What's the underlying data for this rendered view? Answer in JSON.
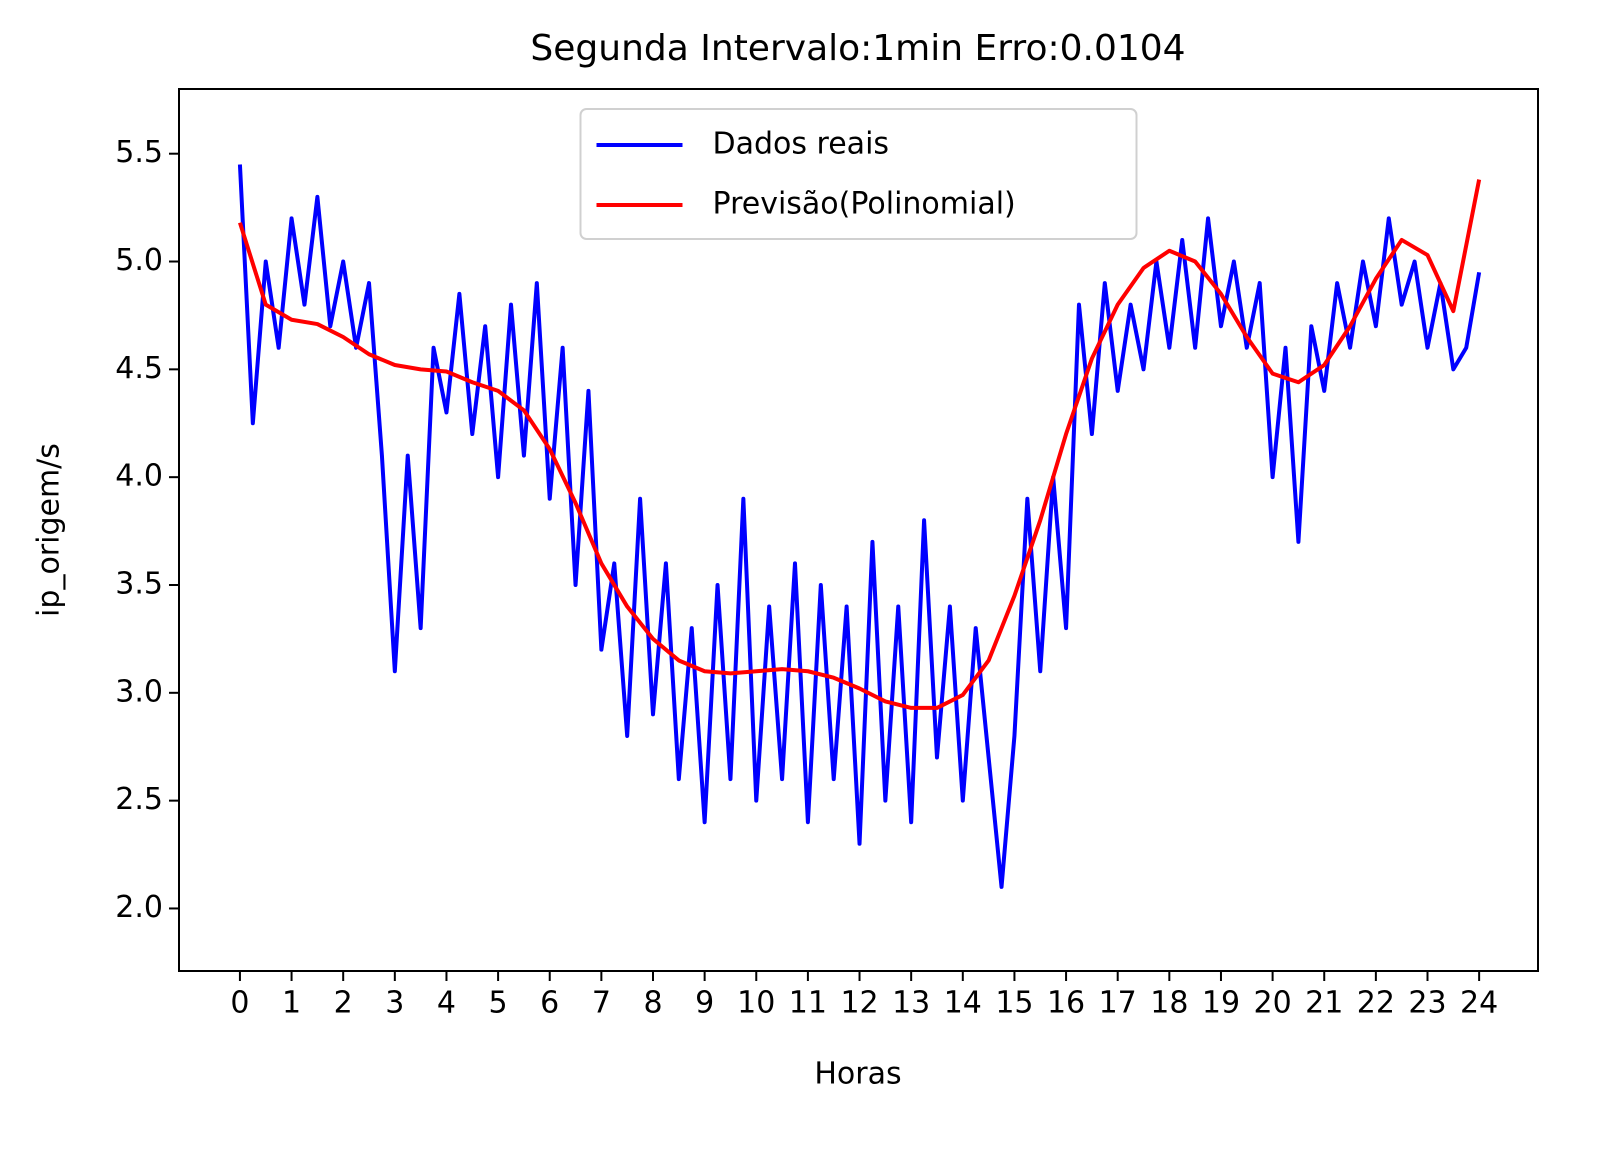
{
  "chart_data": {
    "type": "line",
    "title": "Segunda Intervalo:1min Erro:0.0104",
    "xlabel": "Horas",
    "ylabel": "ip_origem/s",
    "xlim": [
      -1.18,
      25.14
    ],
    "ylim": [
      1.71,
      5.8
    ],
    "xticks": [
      0,
      1,
      2,
      3,
      4,
      5,
      6,
      7,
      8,
      9,
      10,
      11,
      12,
      13,
      14,
      15,
      16,
      17,
      18,
      19,
      20,
      21,
      22,
      23,
      24
    ],
    "yticks": [
      {
        "value": 2.0,
        "label": "2.0"
      },
      2.5,
      {
        "value": 3.0,
        "label": "3.0"
      },
      3.5,
      {
        "value": 4.0,
        "label": "4.0"
      },
      4.5,
      {
        "value": 5.0,
        "label": "5.0"
      },
      5.5
    ],
    "legend": "upper center",
    "series": [
      {
        "name": "Dados reais",
        "color": "#0000ff",
        "x": [
          0,
          0.25,
          0.5,
          0.75,
          1,
          1.25,
          1.5,
          1.75,
          2,
          2.25,
          2.5,
          2.75,
          3,
          3.25,
          3.5,
          3.75,
          4,
          4.25,
          4.5,
          4.75,
          5,
          5.25,
          5.5,
          5.75,
          6,
          6.25,
          6.5,
          6.75,
          7,
          7.25,
          7.5,
          7.75,
          8,
          8.25,
          8.5,
          8.75,
          9,
          9.25,
          9.5,
          9.75,
          10,
          10.25,
          10.5,
          10.75,
          11,
          11.25,
          11.5,
          11.75,
          12,
          12.25,
          12.5,
          12.75,
          13,
          13.25,
          13.5,
          13.75,
          14,
          14.25,
          14.5,
          14.75,
          15,
          15.25,
          15.5,
          15.75,
          16,
          16.25,
          16.5,
          16.75,
          17,
          17.25,
          17.5,
          17.75,
          18,
          18.25,
          18.5,
          18.75,
          19,
          19.25,
          19.5,
          19.75,
          20,
          20.25,
          20.5,
          20.75,
          21,
          21.25,
          21.5,
          21.75,
          22,
          22.25,
          22.5,
          22.75,
          23,
          23.25,
          23.5,
          23.75,
          24
        ],
        "values": [
          5.45,
          4.25,
          5.0,
          4.6,
          5.2,
          4.8,
          5.3,
          4.7,
          5.0,
          4.6,
          4.9,
          4.1,
          3.1,
          4.1,
          3.3,
          4.6,
          4.3,
          4.85,
          4.2,
          4.7,
          4.0,
          4.8,
          4.1,
          4.9,
          3.9,
          4.6,
          3.5,
          4.4,
          3.2,
          3.6,
          2.8,
          3.9,
          2.9,
          3.6,
          2.6,
          3.3,
          2.4,
          3.5,
          2.6,
          3.9,
          2.5,
          3.4,
          2.6,
          3.6,
          2.4,
          3.5,
          2.6,
          3.4,
          2.3,
          3.7,
          2.5,
          3.4,
          2.4,
          3.8,
          2.7,
          3.4,
          2.5,
          3.3,
          2.7,
          2.1,
          2.8,
          3.9,
          3.1,
          4.0,
          3.3,
          4.8,
          4.2,
          4.9,
          4.4,
          4.8,
          4.5,
          5.0,
          4.6,
          5.1,
          4.6,
          5.2,
          4.7,
          5.0,
          4.6,
          4.9,
          4.0,
          4.6,
          3.7,
          4.7,
          4.4,
          4.9,
          4.6,
          5.0,
          4.7,
          5.2,
          4.8,
          5.0,
          4.6,
          4.9,
          4.5,
          4.6,
          4.95
        ]
      },
      {
        "name": "Previsão(Polinomial)",
        "color": "#ff0000",
        "x": [
          0,
          0.5,
          1,
          1.5,
          2,
          2.5,
          3,
          3.5,
          4,
          4.5,
          5,
          5.5,
          6,
          6.5,
          7,
          7.5,
          8,
          8.5,
          9,
          9.5,
          10,
          10.5,
          11,
          11.5,
          12,
          12.5,
          13,
          13.5,
          14,
          14.5,
          15,
          15.5,
          16,
          16.5,
          17,
          17.5,
          18,
          18.5,
          19,
          19.5,
          20,
          20.5,
          21,
          21.5,
          22,
          22.5,
          23,
          23.5,
          24
        ],
        "values": [
          5.18,
          4.8,
          4.73,
          4.71,
          4.65,
          4.57,
          4.52,
          4.5,
          4.49,
          4.44,
          4.4,
          4.31,
          4.13,
          3.88,
          3.6,
          3.4,
          3.25,
          3.15,
          3.1,
          3.09,
          3.1,
          3.11,
          3.1,
          3.07,
          3.02,
          2.96,
          2.93,
          2.93,
          2.99,
          3.15,
          3.45,
          3.8,
          4.2,
          4.55,
          4.8,
          4.97,
          5.05,
          5.0,
          4.85,
          4.65,
          4.48,
          4.44,
          4.52,
          4.7,
          4.92,
          5.1,
          5.03,
          4.77,
          5.38
        ]
      }
    ]
  }
}
